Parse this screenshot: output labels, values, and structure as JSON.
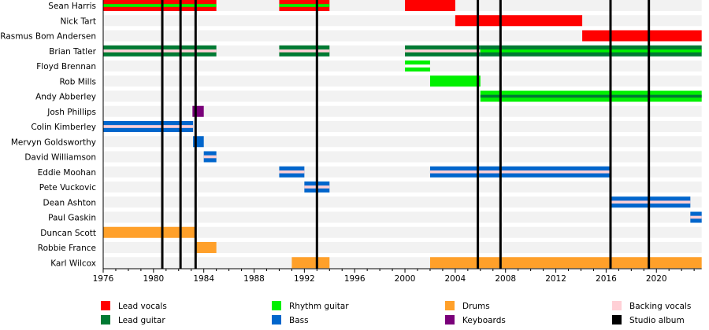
{
  "chart_data": {
    "type": "timeline",
    "xlim": [
      1976,
      2023.6
    ],
    "x_ticks": [
      "1976",
      "1980",
      "1984",
      "1988",
      "1992",
      "1996",
      "2000",
      "2004",
      "2008",
      "2012",
      "2016",
      "2020"
    ],
    "roles": {
      "lead_vocals": {
        "label": "Lead vocals",
        "color": "#ff0000"
      },
      "lead_guitar": {
        "label": "Lead guitar",
        "color": "#007a33"
      },
      "rhythm_guitar": {
        "label": "Rhythm guitar",
        "color": "#00f000"
      },
      "bass": {
        "label": "Bass",
        "color": "#0066cc"
      },
      "drums": {
        "label": "Drums",
        "color": "#ffa02a"
      },
      "keyboards": {
        "label": "Keyboards",
        "color": "#7a007a"
      },
      "backing_vocals": {
        "label": "Backing vocals",
        "color": "#ffd0d6"
      },
      "studio_album": {
        "label": "Studio album",
        "color": "#000000"
      }
    },
    "legend_order": [
      [
        "lead_vocals",
        "lead_guitar"
      ],
      [
        "rhythm_guitar",
        "bass"
      ],
      [
        "drums",
        "keyboards"
      ],
      [
        "backing_vocals",
        "studio_album"
      ]
    ],
    "studio_albums": [
      1980.7,
      1982.15,
      1983.35,
      1993.0,
      2005.8,
      2007.6,
      2016.35,
      2019.4
    ],
    "members": [
      {
        "name": "Sean Harris",
        "bars": [
          {
            "role": "lead_vocals",
            "stripe": "rhythm_guitar",
            "start": 1976,
            "end": 1985
          },
          {
            "role": "lead_vocals",
            "stripe": "rhythm_guitar",
            "start": 1990,
            "end": 1994
          },
          {
            "role": "lead_vocals",
            "start": 2000,
            "end": 2004
          }
        ]
      },
      {
        "name": "Nick Tart",
        "bars": [
          {
            "role": "lead_vocals",
            "start": 2004,
            "end": 2014.1
          }
        ]
      },
      {
        "name": "Rasmus Bom Andersen",
        "bars": [
          {
            "role": "lead_vocals",
            "start": 2014.1,
            "end": 2023.6
          }
        ]
      },
      {
        "name": "Brian Tatler",
        "bars": [
          {
            "role": "lead_guitar",
            "stripe": "backing_vocals",
            "start": 1976,
            "end": 1985
          },
          {
            "role": "lead_guitar",
            "stripe": "backing_vocals",
            "start": 1990,
            "end": 1994
          },
          {
            "role": "lead_guitar",
            "stripe": "backing_vocals",
            "start": 2000,
            "end": 2006
          },
          {
            "role": "lead_guitar",
            "stripe": "rhythm_guitar",
            "start": 2006,
            "end": 2023.6
          }
        ]
      },
      {
        "name": "Floyd Brennan",
        "bars": [
          {
            "role": "rhythm_guitar",
            "stripe": "white",
            "start": 2000,
            "end": 2002
          }
        ]
      },
      {
        "name": "Rob Mills",
        "bars": [
          {
            "role": "rhythm_guitar",
            "start": 2002,
            "end": 2006
          }
        ]
      },
      {
        "name": "Andy Abberley",
        "bars": [
          {
            "role": "rhythm_guitar",
            "stripe": "lead_guitar",
            "start": 2006,
            "end": 2023.6
          }
        ]
      },
      {
        "name": "Josh Phillips",
        "bars": [
          {
            "role": "keyboards",
            "start": 1983.1,
            "end": 1984
          }
        ]
      },
      {
        "name": "Colin Kimberley",
        "bars": [
          {
            "role": "bass",
            "stripe": "backing_vocals",
            "start": 1976,
            "end": 1983.15
          }
        ]
      },
      {
        "name": "Mervyn Goldsworthy",
        "bars": [
          {
            "role": "bass",
            "start": 1983.15,
            "end": 1984
          }
        ]
      },
      {
        "name": "David Williamson",
        "bars": [
          {
            "role": "bass",
            "stripe": "backing_vocals",
            "start": 1984,
            "end": 1985
          }
        ]
      },
      {
        "name": "Eddie Moohan",
        "bars": [
          {
            "role": "bass",
            "stripe": "backing_vocals",
            "start": 1990,
            "end": 1992
          },
          {
            "role": "bass",
            "stripe": "backing_vocals",
            "start": 2002,
            "end": 2016.4
          }
        ]
      },
      {
        "name": "Pete Vuckovic",
        "bars": [
          {
            "role": "bass",
            "stripe": "backing_vocals",
            "start": 1992,
            "end": 1994
          }
        ]
      },
      {
        "name": "Dean Ashton",
        "bars": [
          {
            "role": "bass",
            "stripe": "backing_vocals",
            "start": 2016.4,
            "end": 2022.7
          }
        ]
      },
      {
        "name": "Paul Gaskin",
        "bars": [
          {
            "role": "bass",
            "stripe": "backing_vocals",
            "start": 2022.7,
            "end": 2023.6
          }
        ]
      },
      {
        "name": "Duncan Scott",
        "bars": [
          {
            "role": "drums",
            "start": 1976,
            "end": 1983.4
          }
        ]
      },
      {
        "name": "Robbie France",
        "bars": [
          {
            "role": "drums",
            "start": 1983.4,
            "end": 1985
          }
        ]
      },
      {
        "name": "Karl Wilcox",
        "bars": [
          {
            "role": "drums",
            "start": 1991,
            "end": 1994
          },
          {
            "role": "drums",
            "start": 2002,
            "end": 2023.6
          }
        ]
      }
    ]
  }
}
